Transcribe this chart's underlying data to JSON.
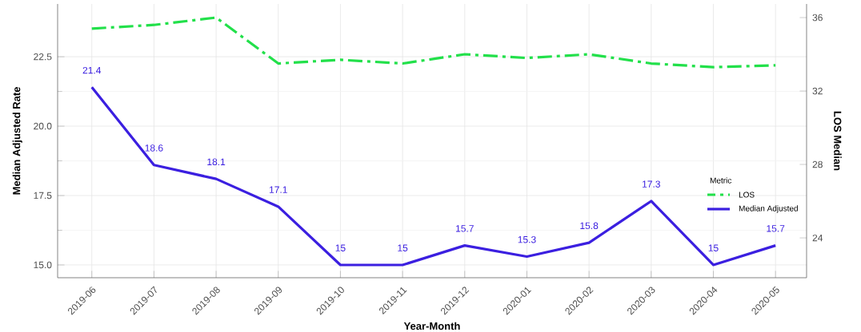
{
  "chart_data": {
    "type": "line",
    "xlabel": "Year-Month",
    "ylabel": "Median Adjusted Rate",
    "y2label": "LOS Median",
    "legend_title": "Metric",
    "categories": [
      "2019-06",
      "2019-07",
      "2019-08",
      "2019-09",
      "2019-10",
      "2019-11",
      "2019-12",
      "2020-01",
      "2020-02",
      "2020-03",
      "2020-04",
      "2020-05"
    ],
    "series": [
      {
        "name": "LOS",
        "color": "#22e04a",
        "axis": "y2",
        "line_style": "dashed",
        "values": [
          35.4,
          35.6,
          36.0,
          33.5,
          33.7,
          33.5,
          34.0,
          33.8,
          34.0,
          33.5,
          33.3,
          33.4
        ]
      },
      {
        "name": "Median Adjusted",
        "color": "#3b1fe0",
        "axis": "y",
        "line_style": "solid",
        "values": [
          21.4,
          18.6,
          18.1,
          17.1,
          15.0,
          15.0,
          15.7,
          15.3,
          15.8,
          17.3,
          15.0,
          15.7
        ],
        "value_labels": [
          "21.4",
          "18.6",
          "18.1",
          "17.1",
          "15",
          "15",
          "15.7",
          "15.3",
          "15.8",
          "17.3",
          "15",
          "15.7"
        ]
      }
    ],
    "ylim": [
      14.54,
      24.4
    ],
    "yticks": [
      {
        "value": 15,
        "label": "15.0"
      },
      {
        "value": 17.5,
        "label": "17.5"
      },
      {
        "value": 20,
        "label": "20.0"
      },
      {
        "value": 22.5,
        "label": "22.5"
      }
    ],
    "y2lim": [
      21.83,
      36.74
    ],
    "y2ticks": [
      24,
      28,
      32,
      36
    ],
    "grid": true,
    "legend": "bottom right",
    "marker": "none"
  }
}
